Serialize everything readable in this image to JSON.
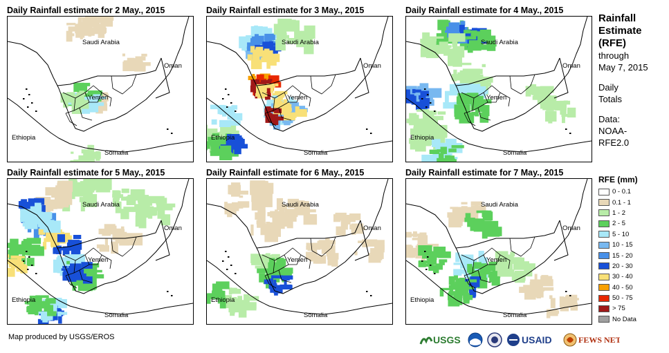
{
  "panels": [
    {
      "title": "Daily Rainfall estimate for 2 May., 2015"
    },
    {
      "title": "Daily Rainfall estimate for 3 May., 2015"
    },
    {
      "title": "Daily Rainfall estimate for 4 May., 2015"
    },
    {
      "title": "Daily Rainfall estimate for 5 May., 2015"
    },
    {
      "title": "Daily Rainfall estimate for 6 May., 2015"
    },
    {
      "title": "Daily Rainfall estimate for 7 May., 2015"
    }
  ],
  "map_labels": {
    "saudi": "Saudi Arabia",
    "oman": "Oman",
    "yemen": "Yemen",
    "ethiopia": "Ethiopia",
    "somalia": "Somalia"
  },
  "sidebar": {
    "title_line1": "Rainfall",
    "title_line2": "Estimate",
    "title_line3": "(RFE)",
    "through": "through",
    "date": "May 7, 2015",
    "daily1": "Daily",
    "daily2": "Totals",
    "data1": "Data:",
    "data2": "NOAA-",
    "data3": "RFE2.0"
  },
  "legend": {
    "title": "RFE (mm)",
    "items": [
      {
        "label": "0 - 0.1",
        "color": "#ffffff"
      },
      {
        "label": "0.1 - 1",
        "color": "#e8d8b8"
      },
      {
        "label": "1 - 2",
        "color": "#b8eca8"
      },
      {
        "label": "2 - 5",
        "color": "#5cd05c"
      },
      {
        "label": "5 - 10",
        "color": "#a8e8f8"
      },
      {
        "label": "10 - 15",
        "color": "#78b8f0"
      },
      {
        "label": "15 - 20",
        "color": "#4890e8"
      },
      {
        "label": "20 - 30",
        "color": "#1850d8"
      },
      {
        "label": "30 - 40",
        "color": "#f8e078"
      },
      {
        "label": "40 - 50",
        "color": "#f8a000"
      },
      {
        "label": "50 - 75",
        "color": "#e82800"
      },
      {
        "label": "> 75",
        "color": "#a01818"
      },
      {
        "label": "No Data",
        "color": "#a0a0a0"
      }
    ]
  },
  "credit": "Map produced by USGS/EROS",
  "logos": {
    "usgs": "USGS",
    "usaid": "USAID",
    "fewsnet": "FEWS NET"
  }
}
